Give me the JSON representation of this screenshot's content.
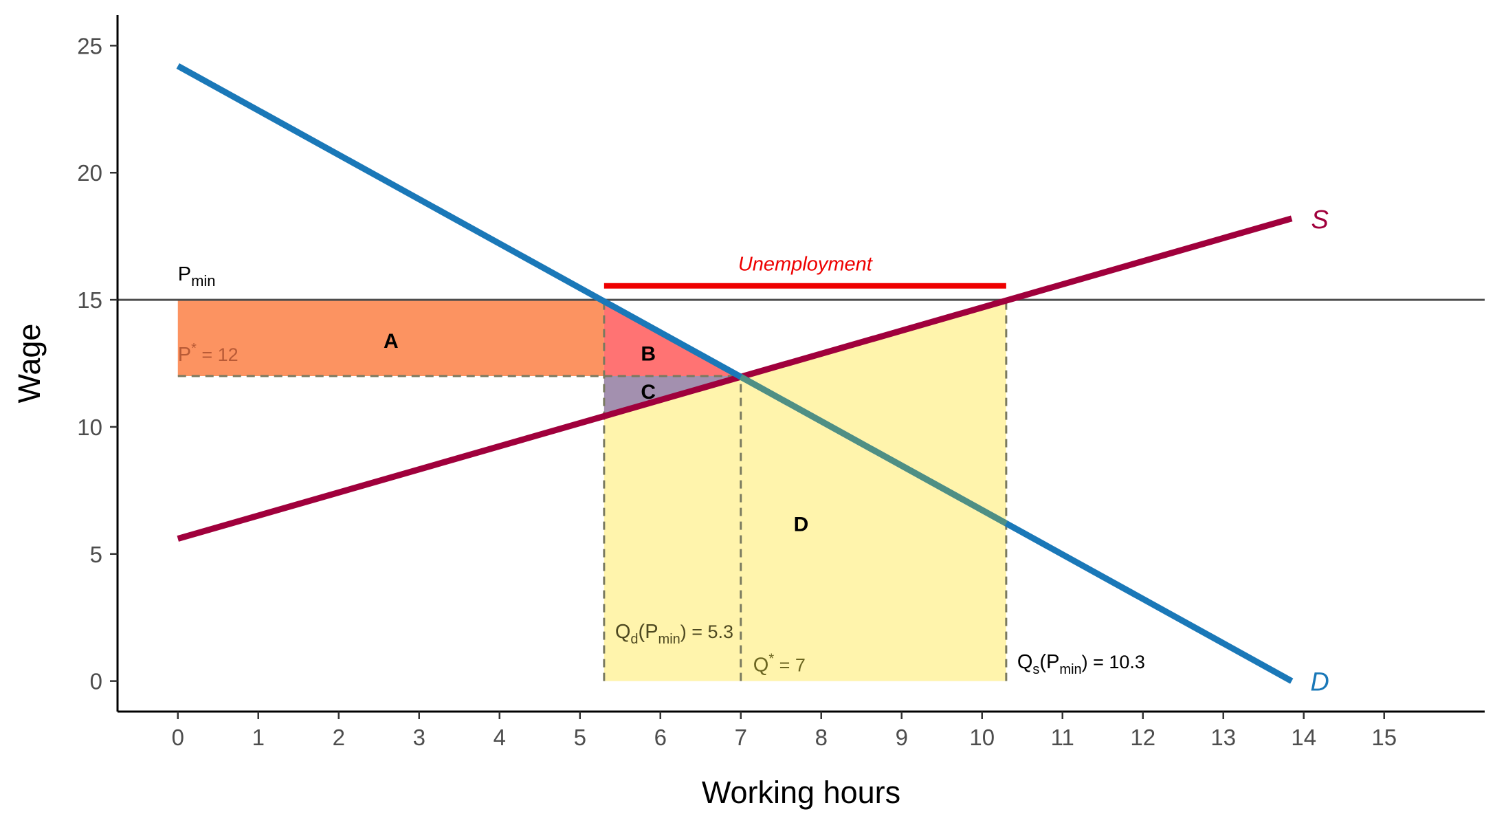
{
  "chart_data": {
    "type": "line",
    "xlabel": "Working hours",
    "ylabel": "Wage",
    "xlim": [
      -0.75,
      16.25
    ],
    "ylim": [
      -1.2,
      26.2
    ],
    "x_ticks": [
      0,
      1,
      2,
      3,
      4,
      5,
      6,
      7,
      8,
      9,
      10,
      11,
      12,
      13,
      14,
      15
    ],
    "y_ticks": [
      0,
      5,
      10,
      15,
      20,
      25
    ],
    "grid": false,
    "series": [
      {
        "name": "S",
        "color": "#a0003c",
        "x": [
          0,
          13.85
        ],
        "y": [
          5.6,
          18.2
        ]
      },
      {
        "name": "D",
        "color": "#1a78b8",
        "x": [
          0,
          13.85
        ],
        "y": [
          24.2,
          0
        ]
      }
    ],
    "price_floor": {
      "label_main": "P",
      "label_sub": "min",
      "value": 15
    },
    "equilibrium": {
      "price": 12,
      "quantity": 7,
      "price_label_main": "P",
      "price_label_sup": "*",
      "price_label_rest": " = 12",
      "quantity_label_main": "Q",
      "quantity_label_sup": "*",
      "quantity_label_rest": " = 7"
    },
    "qd_at_floor": {
      "value": 5.3,
      "label_q": "Q",
      "label_q_sub": "d",
      "label_open": "(P",
      "label_p_sub": "min",
      "label_close": ") = 5.3"
    },
    "qs_at_floor": {
      "value": 10.3,
      "label_q": "Q",
      "label_q_sub": "s",
      "label_open": "(P",
      "label_p_sub": "min",
      "label_close": ") = 10.3"
    },
    "regions": [
      {
        "label": "A",
        "color": "#fc8d59",
        "points": [
          [
            0,
            15
          ],
          [
            5.3,
            15
          ],
          [
            5.3,
            12
          ],
          [
            0,
            12
          ]
        ],
        "label_at": [
          2.65,
          13.4
        ]
      },
      {
        "label": "B",
        "color": "#ff6b6b",
        "points": [
          [
            5.3,
            15
          ],
          [
            7,
            12
          ],
          [
            5.3,
            12
          ]
        ],
        "label_at": [
          5.85,
          12.9
        ]
      },
      {
        "label": "C",
        "color": "#9e8aab",
        "points": [
          [
            5.3,
            12
          ],
          [
            7,
            12
          ],
          [
            5.3,
            10.4
          ]
        ],
        "label_at": [
          5.85,
          11.4
        ]
      },
      {
        "label": "D",
        "color": "#fff3a8",
        "points": [
          [
            5.3,
            0
          ],
          [
            5.3,
            10.4
          ],
          [
            7,
            12
          ],
          [
            10.3,
            15
          ],
          [
            10.3,
            0
          ]
        ],
        "label_at": [
          7.75,
          6.2
        ]
      }
    ],
    "unemployment": {
      "label": "Unemployment",
      "color": "#ee0000",
      "x": [
        5.3,
        10.3
      ],
      "y": 15.55
    },
    "curve_labels": [
      {
        "text": "S",
        "color": "#a0003c",
        "x": 14.2,
        "y": 18.2
      },
      {
        "text": "D",
        "color": "#1a78b8",
        "x": 14.2,
        "y": 0
      }
    ]
  }
}
